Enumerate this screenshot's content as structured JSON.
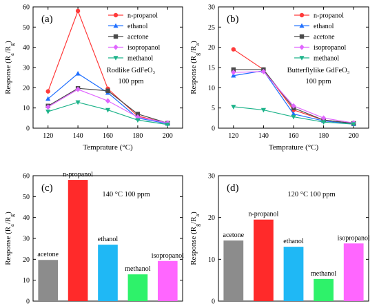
{
  "chart_data": [
    {
      "type": "line",
      "panel_label": "(a)",
      "x": [
        120,
        140,
        160,
        180,
        200
      ],
      "xlim": [
        110,
        210
      ],
      "ylim": [
        0,
        60
      ],
      "xticks": [
        "120",
        "140",
        "160",
        "180",
        "200"
      ],
      "yticks": [
        "0",
        "10",
        "20",
        "30",
        "40",
        "50",
        "60"
      ],
      "xlabel": "Temprature (°C)",
      "ylabel": "Response (Ra/Rg)",
      "annotation_lines": [
        "Rodlike GdFeO₃",
        "100 ppm"
      ],
      "legend_position": "top-right",
      "series": [
        {
          "name": "n-propanol",
          "color": "#ff3b3b",
          "marker": "circle",
          "values": [
            18.2,
            58.0,
            19.5,
            6.0,
            2.5
          ]
        },
        {
          "name": "ethanol",
          "color": "#1f6fff",
          "marker": "triangle",
          "values": [
            14.5,
            27.0,
            17.5,
            5.0,
            2.2
          ]
        },
        {
          "name": "acetone",
          "color": "#4a4a4a",
          "marker": "square",
          "values": [
            11.0,
            19.7,
            18.5,
            7.0,
            2.5
          ]
        },
        {
          "name": "isopropanol",
          "color": "#e066ff",
          "marker": "diamond",
          "values": [
            10.5,
            19.2,
            13.5,
            5.5,
            2.6
          ]
        },
        {
          "name": "methanol",
          "color": "#1db38a",
          "marker": "triangle-down",
          "values": [
            8.2,
            12.8,
            9.0,
            4.0,
            1.8
          ]
        }
      ]
    },
    {
      "type": "line",
      "panel_label": "(b)",
      "x": [
        120,
        140,
        160,
        180,
        200
      ],
      "xlim": [
        110,
        210
      ],
      "ylim": [
        0,
        30
      ],
      "xticks": [
        "120",
        "140",
        "160",
        "180",
        "200"
      ],
      "yticks": [
        "0",
        "5",
        "10",
        "15",
        "20",
        "25",
        "30"
      ],
      "xlabel": "Temprature (°C)",
      "ylabel": "Response (Rg/Ra)",
      "annotation_lines": [
        "Butterflylike GdFeO₃",
        "100 ppm"
      ],
      "legend_position": "top-right",
      "series": [
        {
          "name": "n-propanol",
          "color": "#ff3b3b",
          "marker": "circle",
          "values": [
            19.5,
            14.5,
            4.5,
            2.0,
            1.2
          ]
        },
        {
          "name": "ethanol",
          "color": "#1f6fff",
          "marker": "triangle",
          "values": [
            13.0,
            14.2,
            3.5,
            1.8,
            1.0
          ]
        },
        {
          "name": "acetone",
          "color": "#4a4a4a",
          "marker": "square",
          "values": [
            14.5,
            14.5,
            5.0,
            2.0,
            1.2
          ]
        },
        {
          "name": "isopropanol",
          "color": "#e066ff",
          "marker": "diamond",
          "values": [
            13.8,
            14.0,
            5.5,
            2.5,
            1.3
          ]
        },
        {
          "name": "methanol",
          "color": "#1db38a",
          "marker": "triangle-down",
          "values": [
            5.3,
            4.5,
            2.8,
            1.5,
            1.0
          ]
        }
      ]
    },
    {
      "type": "bar",
      "panel_label": "(c)",
      "categories": [
        "acetone",
        "n-propanol",
        "ethanol",
        "methanol",
        "isopropanol"
      ],
      "values": [
        19.7,
        58.0,
        27.0,
        12.8,
        19.2
      ],
      "colors": [
        "#8c8c8c",
        "#ff2a2a",
        "#1fb8f5",
        "#2ef26a",
        "#ff66ff"
      ],
      "ylim": [
        0,
        60
      ],
      "yticks": [
        "0",
        "10",
        "20",
        "30",
        "40",
        "50",
        "60"
      ],
      "ylabel": "Response (Ra/Rg)",
      "annotation": "140 °C 100 ppm"
    },
    {
      "type": "bar",
      "panel_label": "(d)",
      "categories": [
        "acetone",
        "n-propanol",
        "ethanol",
        "methanol",
        "isopropanol"
      ],
      "values": [
        14.5,
        19.5,
        13.0,
        5.3,
        13.8
      ],
      "colors": [
        "#8c8c8c",
        "#ff2a2a",
        "#1fb8f5",
        "#2ef26a",
        "#ff66ff"
      ],
      "ylim": [
        0,
        30
      ],
      "yticks": [
        "0",
        "10",
        "20",
        "30"
      ],
      "ylabel": "Response (Rg/Ra)",
      "annotation": "120 °C 100 ppm"
    }
  ]
}
